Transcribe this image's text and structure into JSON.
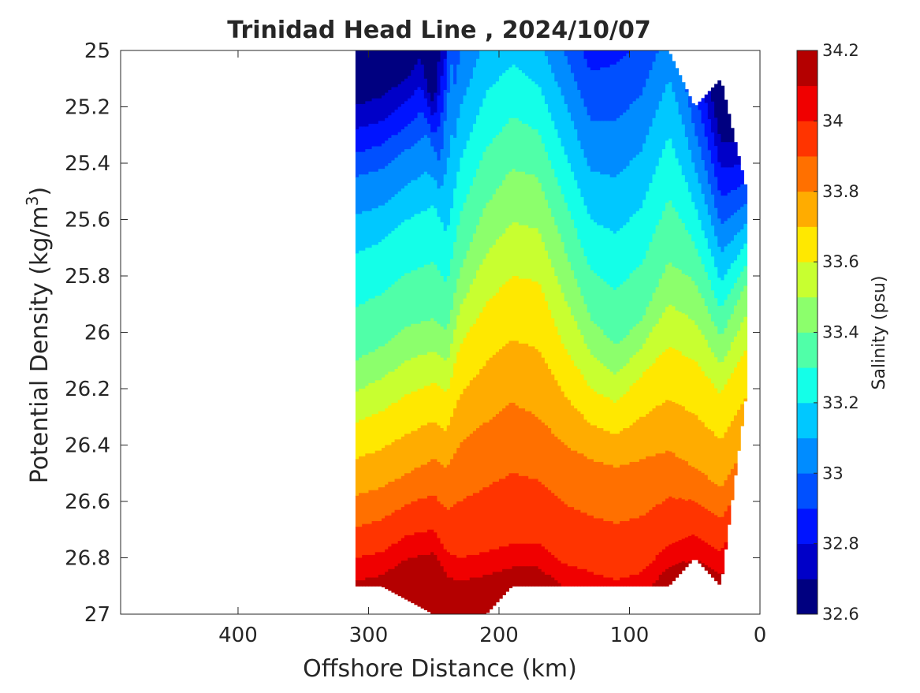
{
  "chart_data": {
    "type": "heatmap",
    "subtype": "filled-contour",
    "title": "Trinidad Head Line , 2024/10/07",
    "xlabel": "Offshore Distance (km)",
    "ylabel_prefix": "Potential Density (kg/m",
    "ylabel_superscript": "3",
    "ylabel_suffix": ")",
    "xlim": [
      490,
      0
    ],
    "x_reversed": true,
    "ylim": [
      25,
      27
    ],
    "y_reversed": true,
    "x_ticks": [
      400,
      300,
      200,
      100,
      0
    ],
    "y_ticks": [
      25,
      25.2,
      25.4,
      25.6,
      25.8,
      26,
      26.2,
      26.4,
      26.6,
      26.8,
      27
    ],
    "colorbar": {
      "label": "Salinity (psu)",
      "min": 32.6,
      "max": 34.2,
      "ticks": [
        32.6,
        32.8,
        33,
        33.2,
        33.4,
        33.6,
        33.8,
        34,
        34.2
      ],
      "levels": [
        32.6,
        32.7,
        32.8,
        32.9,
        33.0,
        33.1,
        33.2,
        33.3,
        33.4,
        33.5,
        33.6,
        33.7,
        33.8,
        33.9,
        34.0,
        34.1,
        34.2
      ],
      "colors": [
        "#000080",
        "#0000c8",
        "#0014ff",
        "#0050ff",
        "#008cff",
        "#00c8ff",
        "#14ffe8",
        "#50ffa8",
        "#8cff6c",
        "#c8ff30",
        "#ffe800",
        "#ffac00",
        "#ff7000",
        "#ff3400",
        "#f00000",
        "#b40000"
      ]
    },
    "stations_km": [
      310,
      290,
      270,
      250,
      230,
      210,
      190,
      170,
      150,
      130,
      110,
      90,
      70,
      50,
      30,
      10
    ],
    "surface_density_shallowest": [
      25.0,
      25.0,
      25.0,
      25.0,
      25.0,
      25.0,
      25.0,
      25.0,
      25.0,
      25.0,
      25.0,
      25.0,
      25.0,
      25.2,
      25.1,
      25.5
    ],
    "deepest_density": [
      26.9,
      26.9,
      26.95,
      27.0,
      27.0,
      27.0,
      26.9,
      26.9,
      26.9,
      26.9,
      26.9,
      26.9,
      26.9,
      26.8,
      26.9,
      26.2
    ],
    "isohalines": [
      {
        "s": 32.8,
        "km": [
          310,
          290,
          270,
          260,
          250,
          240
        ],
        "density": [
          25.28,
          25.25,
          25.18,
          25.12,
          25.25,
          25.0
        ]
      },
      {
        "s": 33.0,
        "km": [
          310,
          290,
          270,
          255,
          245,
          235
        ],
        "density": [
          25.45,
          25.42,
          25.35,
          25.3,
          25.4,
          25.0
        ]
      },
      {
        "s": 33.2,
        "km": [
          310,
          290,
          270,
          250,
          240,
          230,
          210,
          190,
          170,
          150,
          130,
          110,
          90,
          70,
          50,
          30,
          10
        ],
        "density": [
          25.72,
          25.68,
          25.6,
          25.55,
          25.65,
          25.4,
          25.15,
          25.05,
          25.12,
          25.35,
          25.6,
          25.65,
          25.55,
          25.3,
          25.55,
          25.82,
          25.68
        ]
      },
      {
        "s": 33.4,
        "km": [
          310,
          290,
          270,
          250,
          240,
          230,
          210,
          190,
          170,
          150,
          130,
          110,
          90,
          70,
          50,
          30,
          10
        ],
        "density": [
          26.1,
          26.05,
          25.98,
          25.95,
          26.0,
          25.78,
          25.55,
          25.42,
          25.45,
          25.7,
          25.95,
          26.05,
          25.95,
          25.75,
          25.82,
          26.02,
          25.82
        ]
      },
      {
        "s": 33.6,
        "km": [
          310,
          290,
          270,
          250,
          240,
          230,
          210,
          190,
          170,
          150,
          130,
          110,
          90,
          70,
          50,
          30,
          10
        ],
        "density": [
          26.32,
          26.28,
          26.22,
          26.18,
          26.22,
          26.05,
          25.9,
          25.8,
          25.82,
          26.05,
          26.2,
          26.25,
          26.15,
          26.05,
          26.1,
          26.22,
          26.05
        ]
      },
      {
        "s": 33.8,
        "km": [
          310,
          290,
          270,
          250,
          240,
          230,
          210,
          190,
          170,
          150,
          130,
          110,
          90,
          70,
          50,
          30,
          10
        ],
        "density": [
          26.58,
          26.55,
          26.5,
          26.45,
          26.48,
          26.4,
          26.32,
          26.25,
          26.3,
          26.4,
          26.45,
          26.48,
          26.45,
          26.42,
          26.48,
          26.55,
          26.4
        ]
      },
      {
        "s": 34.0,
        "km": [
          310,
          290,
          270,
          250,
          240,
          230,
          210,
          190,
          170,
          150,
          130,
          110,
          90,
          70,
          50,
          30,
          10
        ],
        "density": [
          26.8,
          26.78,
          26.72,
          26.7,
          26.78,
          26.8,
          26.78,
          26.75,
          26.75,
          26.82,
          26.85,
          26.88,
          26.85,
          26.75,
          26.72,
          26.78,
          26.62
        ]
      }
    ]
  }
}
